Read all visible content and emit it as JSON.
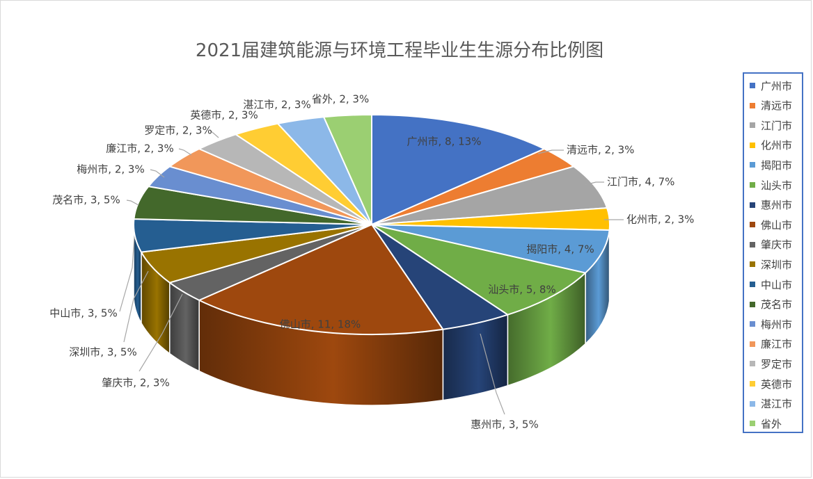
{
  "chart_data": {
    "type": "pie",
    "title": "2021届建筑能源与环境工程毕业生生源分布比例图",
    "legend_position": "right",
    "slices": [
      {
        "label": "广州市",
        "value": 8,
        "percent": 13,
        "color": "#4472c4"
      },
      {
        "label": "清远市",
        "value": 2,
        "percent": 3,
        "color": "#ed7d31"
      },
      {
        "label": "江门市",
        "value": 4,
        "percent": 7,
        "color": "#a5a5a5"
      },
      {
        "label": "化州市",
        "value": 2,
        "percent": 3,
        "color": "#ffc000"
      },
      {
        "label": "揭阳市",
        "value": 4,
        "percent": 7,
        "color": "#5b9bd5"
      },
      {
        "label": "汕头市",
        "value": 5,
        "percent": 8,
        "color": "#70ad47"
      },
      {
        "label": "惠州市",
        "value": 3,
        "percent": 5,
        "color": "#264478"
      },
      {
        "label": "佛山市",
        "value": 11,
        "percent": 18,
        "color": "#9e480e"
      },
      {
        "label": "肇庆市",
        "value": 2,
        "percent": 3,
        "color": "#636363"
      },
      {
        "label": "深圳市",
        "value": 3,
        "percent": 5,
        "color": "#997300"
      },
      {
        "label": "中山市",
        "value": 3,
        "percent": 5,
        "color": "#255e91"
      },
      {
        "label": "茂名市",
        "value": 3,
        "percent": 5,
        "color": "#43682b"
      },
      {
        "label": "梅州市",
        "value": 2,
        "percent": 3,
        "color": "#698ed0"
      },
      {
        "label": "廉江市",
        "value": 2,
        "percent": 3,
        "color": "#f1975a"
      },
      {
        "label": "罗定市",
        "value": 2,
        "percent": 3,
        "color": "#b7b7b7"
      },
      {
        "label": "英德市",
        "value": 2,
        "percent": 3,
        "color": "#ffcd33"
      },
      {
        "label": "湛江市",
        "value": 2,
        "percent": 3,
        "color": "#8cb8e8"
      },
      {
        "label": "省外",
        "value": 2,
        "percent": 3,
        "color": "#9bcf72"
      }
    ]
  }
}
